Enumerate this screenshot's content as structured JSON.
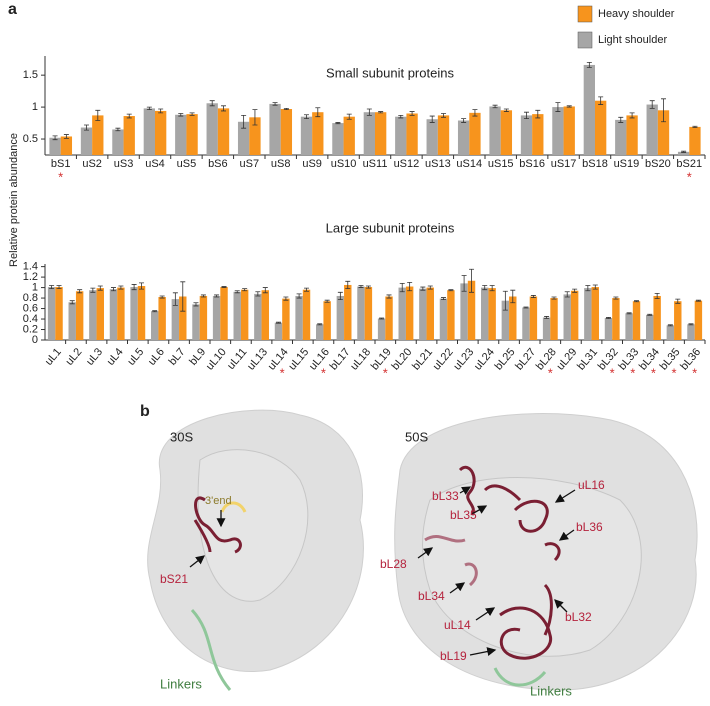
{
  "panels": {
    "a": "a",
    "b": "b"
  },
  "y_axis_label": "Relative protein abundance",
  "chart_data": [
    {
      "type": "bar",
      "title": "Small subunit proteins",
      "categories": [
        "bS1",
        "uS2",
        "uS3",
        "uS4",
        "uS5",
        "bS6",
        "uS7",
        "uS8",
        "uS9",
        "uS10",
        "uS11",
        "uS12",
        "uS13",
        "uS14",
        "uS15",
        "bS16",
        "uS17",
        "bS18",
        "uS19",
        "bS20",
        "bS21"
      ],
      "annotations": [
        "*",
        null,
        null,
        null,
        null,
        null,
        null,
        null,
        null,
        null,
        null,
        null,
        null,
        null,
        null,
        null,
        null,
        null,
        null,
        null,
        "*"
      ],
      "series": [
        {
          "name": "Light shoulder",
          "color": "#a6a6a6",
          "values": [
            0.52,
            0.68,
            0.65,
            0.98,
            0.88,
            1.06,
            0.77,
            1.05,
            0.85,
            0.75,
            0.92,
            0.85,
            0.81,
            0.79,
            1.01,
            0.87,
            1.0,
            1.66,
            0.8,
            1.04,
            0.3
          ],
          "errors": [
            0.03,
            0.04,
            0.02,
            0.02,
            0.02,
            0.04,
            0.1,
            0.02,
            0.03,
            0.01,
            0.05,
            0.02,
            0.05,
            0.03,
            0.02,
            0.05,
            0.07,
            0.04,
            0.04,
            0.06,
            0.01
          ]
        },
        {
          "name": "Heavy shoulder",
          "color": "#f7941d",
          "values": [
            0.54,
            0.87,
            0.86,
            0.94,
            0.89,
            0.98,
            0.84,
            0.97,
            0.92,
            0.85,
            0.92,
            0.9,
            0.87,
            0.91,
            0.95,
            0.89,
            1.01,
            1.1,
            0.87,
            0.95,
            0.69
          ],
          "errors": [
            0.03,
            0.08,
            0.03,
            0.03,
            0.02,
            0.04,
            0.12,
            0.01,
            0.07,
            0.04,
            0.01,
            0.03,
            0.03,
            0.05,
            0.02,
            0.06,
            0.01,
            0.06,
            0.04,
            0.18,
            0.01
          ]
        }
      ],
      "ylim": [
        0.25,
        1.8
      ],
      "yticks": [
        0.5,
        1,
        1.5
      ]
    },
    {
      "type": "bar",
      "title": "Large subunit proteins",
      "categories": [
        "uL1",
        "uL2",
        "uL3",
        "uL4",
        "uL5",
        "uL6",
        "bL7",
        "bL9",
        "uL10",
        "uL11",
        "uL13",
        "uL14",
        "uL15",
        "uL16",
        "bL17",
        "uL18",
        "bL19",
        "bL20",
        "bL21",
        "uL22",
        "uL23",
        "uL24",
        "bL25",
        "bL27",
        "bL28",
        "uL29",
        "bL31",
        "bL32",
        "bL33",
        "bL34",
        "bL35",
        "bL36"
      ],
      "annotations": [
        null,
        null,
        null,
        null,
        null,
        null,
        null,
        null,
        null,
        null,
        null,
        "*",
        null,
        "*",
        null,
        null,
        "*",
        null,
        null,
        null,
        null,
        null,
        null,
        null,
        "*",
        null,
        null,
        "*",
        "*",
        "*",
        "*",
        "*"
      ],
      "series": [
        {
          "name": "Light shoulder",
          "color": "#a6a6a6",
          "values": [
            1.01,
            0.72,
            0.95,
            0.97,
            1.01,
            0.55,
            0.78,
            0.68,
            0.84,
            0.92,
            0.88,
            0.33,
            0.84,
            0.3,
            0.84,
            1.02,
            0.41,
            1.0,
            0.98,
            0.79,
            1.08,
            1.0,
            0.75,
            0.62,
            0.43,
            0.87,
            0.99,
            0.42,
            0.51,
            0.48,
            0.28,
            0.3
          ],
          "errors": [
            0.03,
            0.03,
            0.04,
            0.03,
            0.05,
            0.01,
            0.12,
            0.03,
            0.02,
            0.02,
            0.04,
            0.01,
            0.04,
            0.01,
            0.07,
            0.02,
            0.01,
            0.08,
            0.03,
            0.02,
            0.15,
            0.04,
            0.18,
            0.01,
            0.02,
            0.05,
            0.05,
            0.01,
            0.01,
            0.01,
            0.01,
            0.01
          ]
        },
        {
          "name": "Heavy shoulder",
          "color": "#f7941d",
          "values": [
            1.01,
            0.93,
            0.99,
            1.0,
            1.03,
            0.82,
            0.83,
            0.84,
            1.01,
            0.96,
            0.95,
            0.79,
            0.96,
            0.74,
            1.05,
            1.01,
            0.83,
            1.02,
            1.0,
            0.95,
            1.13,
            0.99,
            0.83,
            0.83,
            0.8,
            0.94,
            1.01,
            0.8,
            0.74,
            0.84,
            0.74,
            0.75
          ],
          "errors": [
            0.03,
            0.03,
            0.04,
            0.03,
            0.06,
            0.02,
            0.28,
            0.02,
            0.01,
            0.02,
            0.05,
            0.03,
            0.03,
            0.02,
            0.07,
            0.02,
            0.03,
            0.08,
            0.03,
            0.01,
            0.22,
            0.05,
            0.12,
            0.02,
            0.02,
            0.03,
            0.04,
            0.02,
            0.01,
            0.05,
            0.04,
            0.01
          ]
        }
      ],
      "ylim": [
        0,
        1.45
      ],
      "yticks": [
        0,
        0.2,
        0.4,
        0.6,
        0.8,
        1,
        1.2,
        1.4
      ]
    }
  ],
  "structure": {
    "left_title": "30S",
    "right_title": "50S",
    "end_label": "3'end",
    "left_proteins": [
      "bS21"
    ],
    "right_proteins": [
      "bL33",
      "bL35",
      "uL16",
      "bL36",
      "bL28",
      "bL34",
      "uL14",
      "bL32",
      "bL19"
    ],
    "left_linkers": "Linkers",
    "right_linkers": "Linkers"
  }
}
